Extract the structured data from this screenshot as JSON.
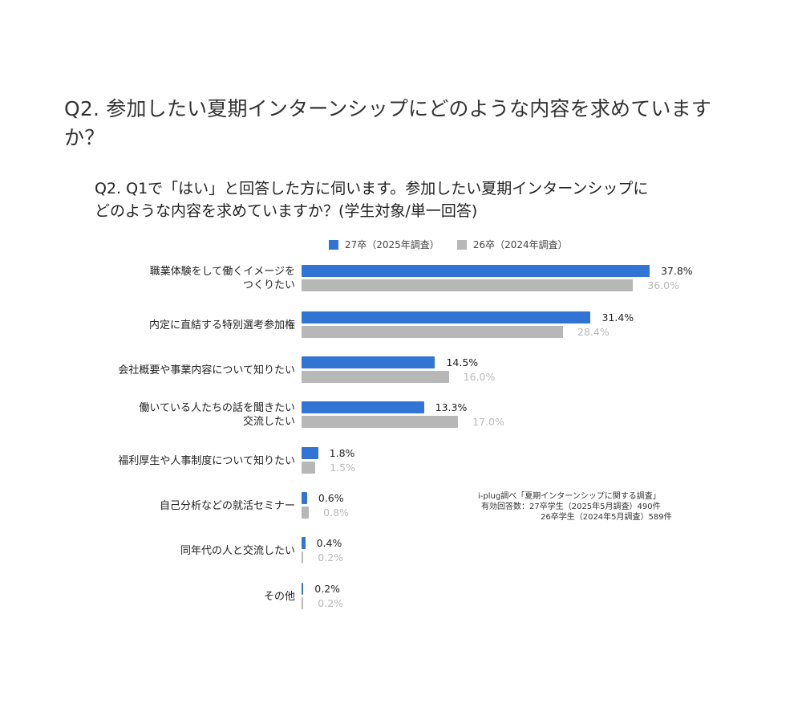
{
  "page_title": "Q2. 参加したい夏期インターンシップにどのような内容を求めていますか？",
  "chart_title_line1": "Q2. Q1で「はい」と回答した方に伺います。参加したい夏期インターンシップに",
  "chart_title_line2": "どのような内容を求めていますか？(学生対象/単一回答)",
  "legend": [
    {
      "label": "27卒（2025年調査）",
      "color": "#3274d3"
    },
    {
      "label": "26卒（2024年調査）",
      "color": "#b7b7b7"
    }
  ],
  "source": {
    "line1": "i-plug調べ「夏期インターンシップに関する調査」",
    "line2": "有効回答数：27卒学生（2025年5月調査）490件",
    "line3": "26卒学生（2024年5月調査）589件"
  },
  "chart_data": {
    "type": "bar",
    "orientation": "horizontal",
    "title": "Q2. Q1で「はい」と回答した方に伺います。参加したい夏期インターンシップにどのような内容を求めていますか？(学生対象/単一回答)",
    "categories": [
      "職業体験をして働くイメージをつくりたい",
      "内定に直結する特別選考参加権",
      "会社概要や事業内容について知りたい",
      "働いている人たちの話を聞きたい交流したい",
      "福利厚生や人事制度について知りたい",
      "自己分析などの就活セミナー",
      "同年代の人と交流したい",
      "その他"
    ],
    "category_display": [
      [
        "職業体験をして働くイメージを",
        "つくりたい"
      ],
      [
        "内定に直結する特別選考参加権"
      ],
      [
        "会社概要や事業内容について知りたい"
      ],
      [
        "働いている人たちの話を聞きたい",
        "交流したい"
      ],
      [
        "福利厚生や人事制度について知りたい"
      ],
      [
        "自己分析などの就活セミナー"
      ],
      [
        "同年代の人と交流したい"
      ],
      [
        "その他"
      ]
    ],
    "series": [
      {
        "name": "27卒（2025年調査）",
        "color": "#3274d3",
        "values": [
          37.8,
          31.4,
          14.5,
          13.3,
          1.8,
          0.6,
          0.4,
          0.2
        ]
      },
      {
        "name": "26卒（2024年調査）",
        "color": "#b7b7b7",
        "values": [
          36.0,
          28.4,
          16.0,
          17.0,
          1.5,
          0.8,
          0.2,
          0.2
        ]
      }
    ],
    "value_labels_a": [
      "37.8%",
      "31.4%",
      "14.5%",
      "13.3%",
      "1.8%",
      "0.6%",
      "0.4%",
      "0.2%"
    ],
    "value_labels_b": [
      "36.0%",
      "28.4%",
      "16.0%",
      "17.0%",
      "1.5%",
      "0.8%",
      "0.2%",
      "0.2%"
    ],
    "xlabel": "",
    "ylabel": "",
    "unit": "%",
    "grid": false,
    "legend_position": "top"
  }
}
